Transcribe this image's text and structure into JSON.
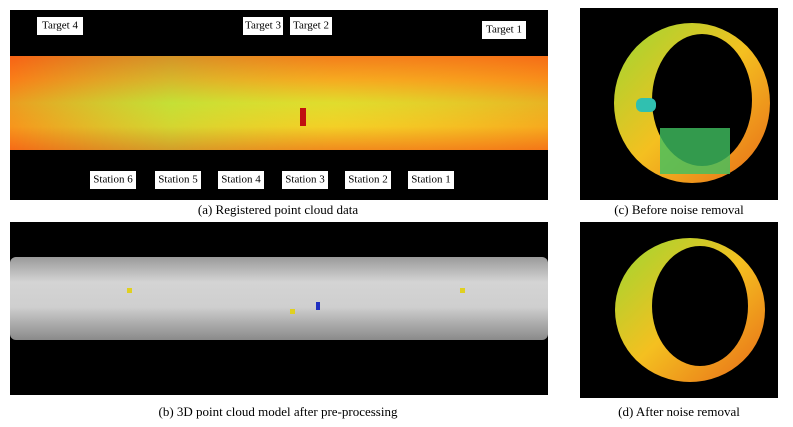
{
  "panels": [
    {
      "caption": "(a) Registered point cloud data",
      "targets": [
        "Target 4",
        "Target 3",
        "Target 2",
        "Target 1"
      ],
      "stations": [
        "Station 6",
        "Station 5",
        "Station 4",
        "Station 3",
        "Station 2",
        "Station 1"
      ]
    },
    {
      "caption": "(b) 3D point cloud model after pre-processing"
    },
    {
      "caption": "(c) Before noise removal"
    },
    {
      "caption": "(d) After noise removal"
    }
  ]
}
